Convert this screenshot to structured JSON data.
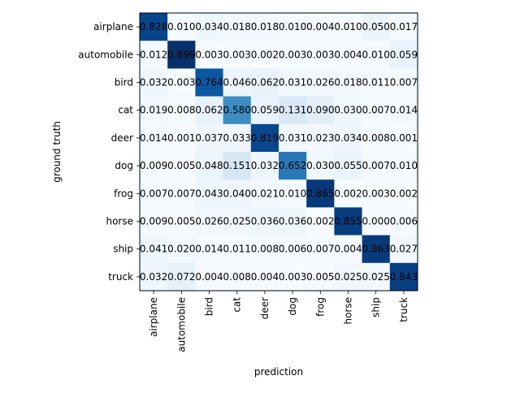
{
  "chart_data": {
    "type": "heatmap",
    "title": "",
    "xlabel": "prediction",
    "ylabel": "ground truth",
    "colormap": "Blues",
    "color_range": [
      0,
      0.899
    ],
    "x_categories": [
      "airplane",
      "automobile",
      "bird",
      "cat",
      "deer",
      "dog",
      "frog",
      "horse",
      "ship",
      "truck"
    ],
    "y_categories": [
      "airplane",
      "automobile",
      "bird",
      "cat",
      "deer",
      "dog",
      "frog",
      "horse",
      "ship",
      "truck"
    ],
    "values": [
      [
        0.828,
        0.01,
        0.034,
        0.018,
        0.018,
        0.01,
        0.004,
        0.01,
        0.05,
        0.017
      ],
      [
        0.012,
        0.899,
        0.003,
        0.003,
        0.002,
        0.003,
        0.003,
        0.004,
        0.01,
        0.059
      ],
      [
        0.032,
        0.003,
        0.764,
        0.046,
        0.062,
        0.031,
        0.026,
        0.018,
        0.011,
        0.007
      ],
      [
        0.019,
        0.008,
        0.062,
        0.58,
        0.059,
        0.131,
        0.09,
        0.03,
        0.007,
        0.014
      ],
      [
        0.014,
        0.001,
        0.037,
        0.033,
        0.819,
        0.031,
        0.023,
        0.034,
        0.008,
        0.001
      ],
      [
        0.009,
        0.005,
        0.048,
        0.151,
        0.032,
        0.652,
        0.03,
        0.055,
        0.007,
        0.01
      ],
      [
        0.007,
        0.007,
        0.043,
        0.04,
        0.021,
        0.01,
        0.865,
        0.002,
        0.003,
        0.002
      ],
      [
        0.009,
        0.005,
        0.026,
        0.025,
        0.036,
        0.036,
        0.002,
        0.855,
        0.0,
        0.006
      ],
      [
        0.041,
        0.02,
        0.014,
        0.011,
        0.008,
        0.006,
        0.007,
        0.004,
        0.863,
        0.027
      ],
      [
        0.032,
        0.072,
        0.004,
        0.008,
        0.004,
        0.003,
        0.005,
        0.025,
        0.025,
        0.843
      ]
    ],
    "value_labels": [
      [
        "0.828",
        "0.010",
        "0.034",
        "0.018",
        "0.018",
        "0.010",
        "0.004",
        "0.010",
        "0.050",
        "0.017"
      ],
      [
        "0.012",
        "0.899",
        "0.003",
        "0.003",
        "0.002",
        "0.003",
        "0.003",
        "0.004",
        "0.010",
        "0.059"
      ],
      [
        "0.032",
        "0.003",
        "0.764",
        "0.046",
        "0.062",
        "0.031",
        "0.026",
        "0.018",
        "0.011",
        "0.007"
      ],
      [
        "0.019",
        "0.008",
        "0.062",
        "0.580",
        "0.059",
        "0.131",
        "0.090",
        "0.030",
        "0.007",
        "0.014"
      ],
      [
        "0.014",
        "0.001",
        "0.037",
        "0.033",
        "0.819",
        "0.031",
        "0.023",
        "0.034",
        "0.008",
        "0.001"
      ],
      [
        "0.009",
        "0.005",
        "0.048",
        "0.151",
        "0.032",
        "0.652",
        "0.030",
        "0.055",
        "0.007",
        "0.010"
      ],
      [
        "0.007",
        "0.007",
        "0.043",
        "0.040",
        "0.021",
        "0.010",
        "0.865",
        "0.002",
        "0.003",
        "0.002"
      ],
      [
        "0.009",
        "0.005",
        "0.026",
        "0.025",
        "0.036",
        "0.036",
        "0.002",
        "0.855",
        "0.000",
        "0.006"
      ],
      [
        "0.041",
        "0.020",
        "0.014",
        "0.011",
        "0.008",
        "0.006",
        "0.007",
        "0.004",
        "0.863",
        "0.027"
      ],
      [
        "0.032",
        "0.072",
        "0.004",
        "0.008",
        "0.004",
        "0.003",
        "0.005",
        "0.025",
        "0.025",
        "0.843"
      ]
    ],
    "grid": false,
    "legend": "none"
  }
}
